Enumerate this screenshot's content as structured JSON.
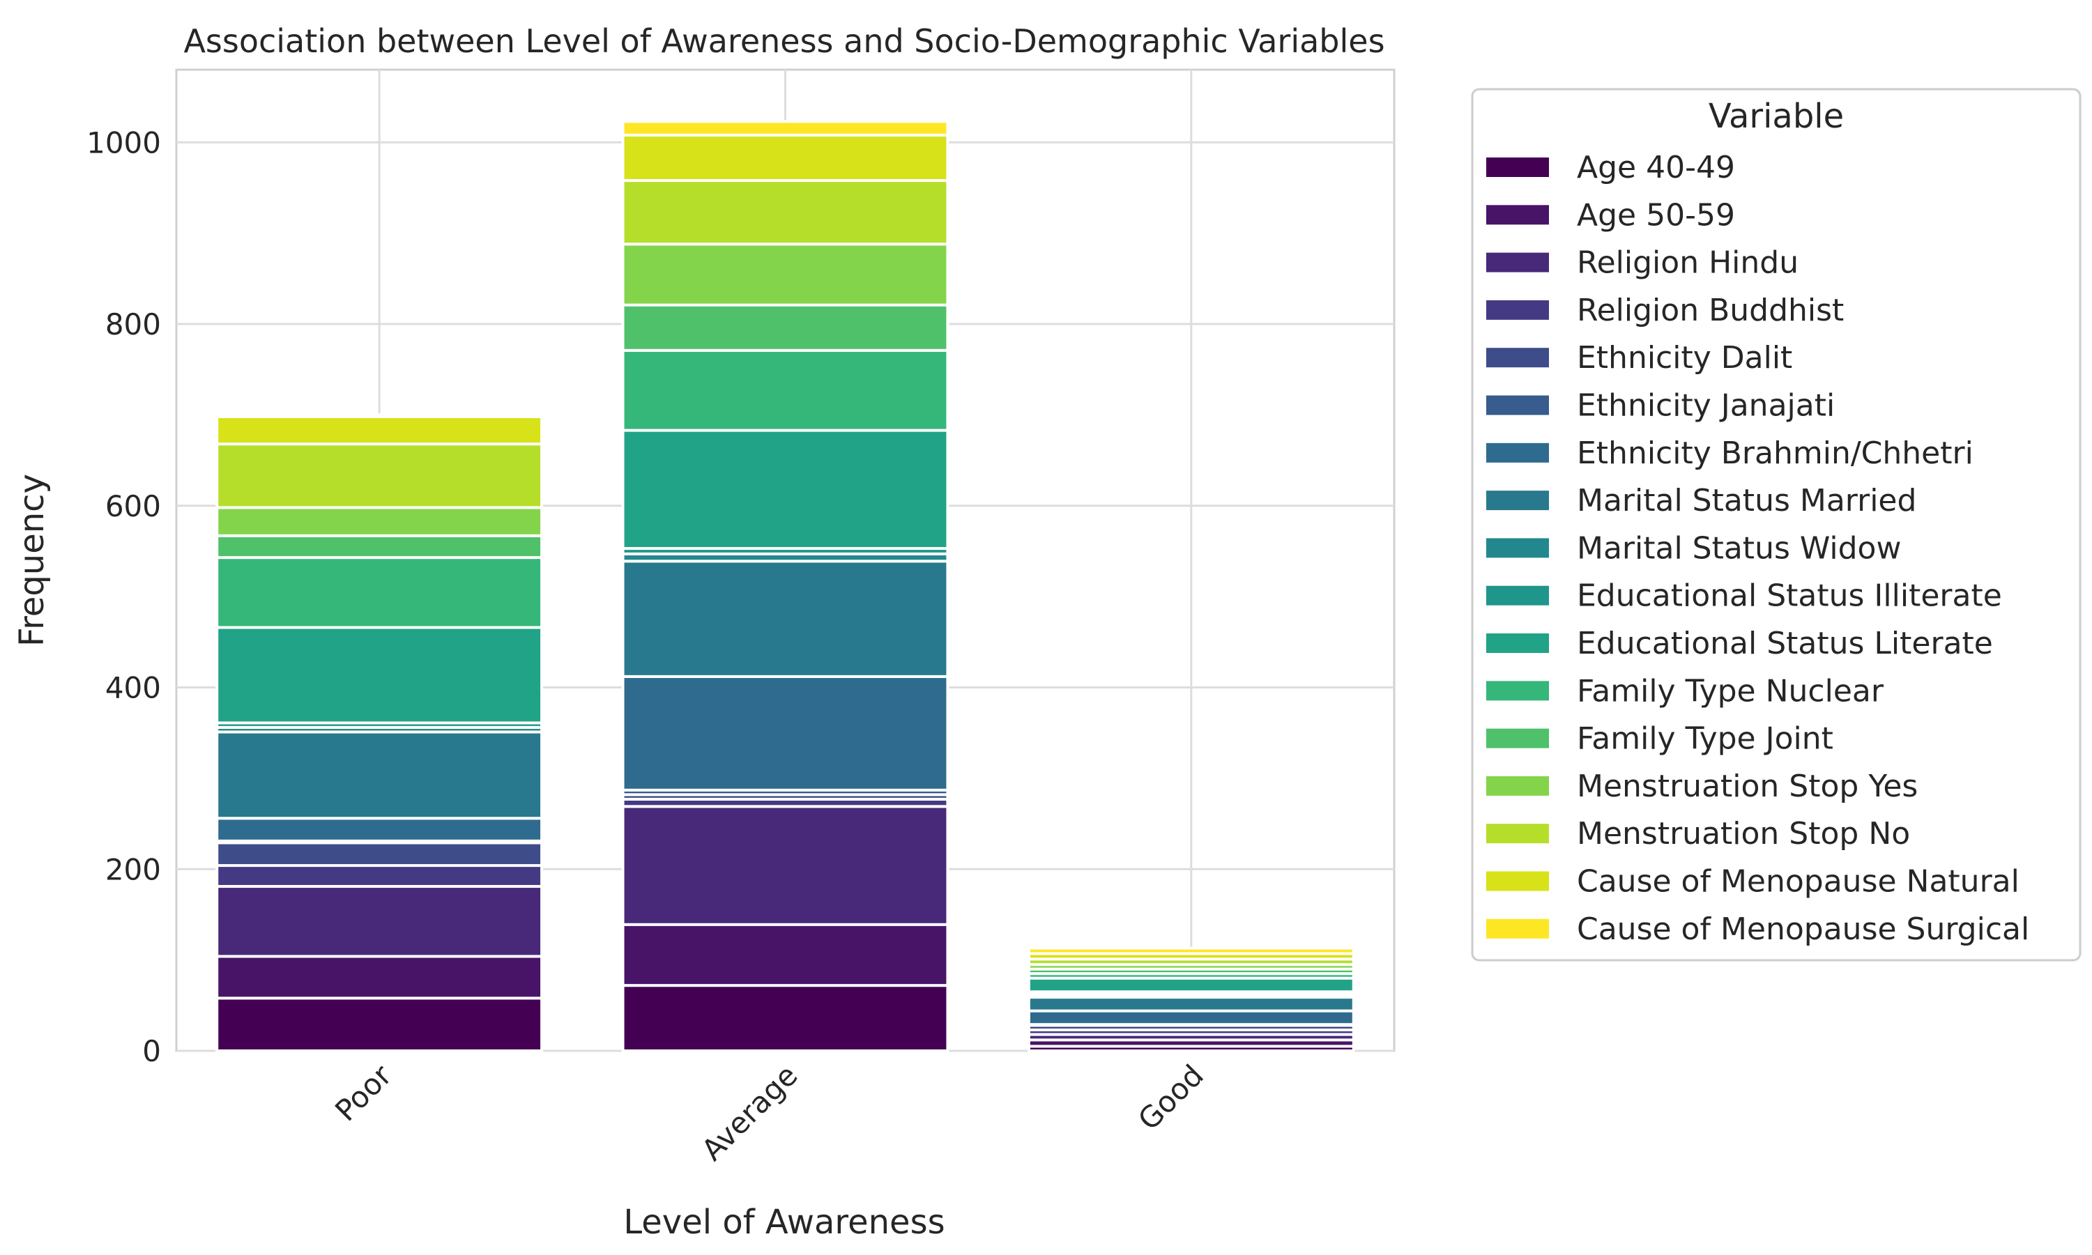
{
  "chart_data": {
    "type": "bar",
    "stacked": true,
    "title": "Association between Level of Awareness and Socio-Demographic Variables",
    "xlabel": "Level of Awareness",
    "ylabel": "Frequency",
    "categories": [
      "Poor",
      "Average",
      "Good"
    ],
    "ylim": [
      0,
      1080
    ],
    "yticks": [
      0,
      200,
      400,
      600,
      800,
      1000
    ],
    "grid": true,
    "legend_title": "Variable",
    "legend_position": "outside-right",
    "series": [
      {
        "name": "Age 40-49",
        "color": "#440154",
        "values": [
          58,
          72,
          5
        ]
      },
      {
        "name": "Age 50-59",
        "color": "#481467",
        "values": [
          46,
          67,
          7
        ]
      },
      {
        "name": "Religion Hindu",
        "color": "#482878",
        "values": [
          77,
          130,
          6
        ]
      },
      {
        "name": "Religion Buddhist",
        "color": "#443a83",
        "values": [
          23,
          8,
          5
        ]
      },
      {
        "name": "Ethnicity Dalit",
        "color": "#3e4c8a",
        "values": [
          25,
          5,
          5
        ]
      },
      {
        "name": "Ethnicity Janajati",
        "color": "#375c8d",
        "values": [
          2,
          5,
          1
        ]
      },
      {
        "name": "Ethnicity Brahmin/Chhetri",
        "color": "#2f6b8e",
        "values": [
          25,
          125,
          15
        ]
      },
      {
        "name": "Marital Status Married",
        "color": "#29798e",
        "values": [
          95,
          127,
          15
        ]
      },
      {
        "name": "Marital Status Widow",
        "color": "#23888e",
        "values": [
          5,
          8,
          3
        ]
      },
      {
        "name": "Educational Status Illiterate",
        "color": "#1f968b",
        "values": [
          5,
          6,
          3
        ]
      },
      {
        "name": "Educational Status Literate",
        "color": "#20a386",
        "values": [
          105,
          130,
          15
        ]
      },
      {
        "name": "Family Type Nuclear",
        "color": "#35b779",
        "values": [
          77,
          88,
          5
        ]
      },
      {
        "name": "Family Type Joint",
        "color": "#4fc16b",
        "values": [
          24,
          50,
          5
        ]
      },
      {
        "name": "Menstruation Stop Yes",
        "color": "#84d44b",
        "values": [
          31,
          67,
          5
        ]
      },
      {
        "name": "Menstruation Stop No",
        "color": "#b5de2b",
        "values": [
          70,
          70,
          6
        ]
      },
      {
        "name": "Cause of Menopause Natural",
        "color": "#d8e219",
        "values": [
          30,
          50,
          6
        ]
      },
      {
        "name": "Cause of Menopause Surgical",
        "color": "#fde725",
        "values": [
          2,
          15,
          6
        ]
      }
    ]
  }
}
